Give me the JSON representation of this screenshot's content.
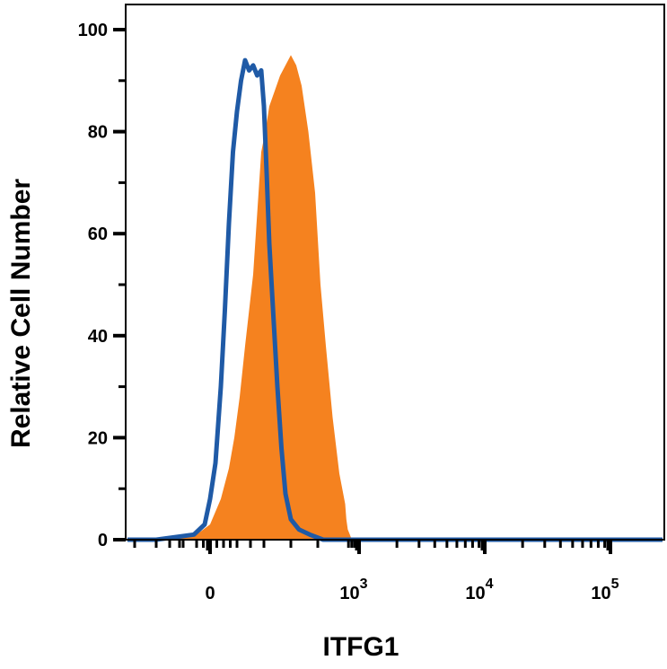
{
  "chart_data": {
    "type": "area",
    "xlabel": "ITFG1",
    "ylabel": "Relative Cell Number",
    "ylim": [
      0,
      100
    ],
    "y_ticks": [
      {
        "value": 0,
        "label": "0"
      },
      {
        "value": 20,
        "label": "20"
      },
      {
        "value": 40,
        "label": "40"
      },
      {
        "value": 60,
        "label": "60"
      },
      {
        "value": 80,
        "label": "80"
      },
      {
        "value": 100,
        "label": "100"
      }
    ],
    "x_scale": "biexponential",
    "x_ticks": [
      {
        "value": 0,
        "base": "0",
        "exp": ""
      },
      {
        "value": 1000,
        "base": "10",
        "exp": "3"
      },
      {
        "value": 10000,
        "base": "10",
        "exp": "4"
      },
      {
        "value": 100000,
        "base": "10",
        "exp": "5"
      }
    ],
    "grid": false,
    "legend": "none",
    "series": [
      {
        "style": "filled",
        "color": "#F5821F",
        "points": [
          [
            -150,
            0
          ],
          [
            -50,
            1
          ],
          [
            0,
            3
          ],
          [
            40,
            8
          ],
          [
            70,
            14
          ],
          [
            90,
            20
          ],
          [
            110,
            28
          ],
          [
            130,
            38
          ],
          [
            145,
            45
          ],
          [
            160,
            52
          ],
          [
            175,
            64
          ],
          [
            190,
            76
          ],
          [
            205,
            80
          ],
          [
            220,
            85
          ],
          [
            240,
            88
          ],
          [
            260,
            91
          ],
          [
            280,
            93
          ],
          [
            300,
            95
          ],
          [
            320,
            93
          ],
          [
            340,
            89
          ],
          [
            365,
            80
          ],
          [
            390,
            68
          ],
          [
            410,
            50
          ],
          [
            430,
            38
          ],
          [
            455,
            24
          ],
          [
            480,
            13
          ],
          [
            510,
            7
          ],
          [
            540,
            4
          ],
          [
            580,
            2
          ],
          [
            640,
            1
          ],
          [
            700,
            0
          ],
          [
            800,
            0
          ]
        ]
      },
      {
        "style": "line",
        "color": "#1F5AA6",
        "points": [
          [
            -200,
            0
          ],
          [
            -60,
            1
          ],
          [
            -20,
            3
          ],
          [
            0,
            8
          ],
          [
            20,
            15
          ],
          [
            40,
            30
          ],
          [
            55,
            45
          ],
          [
            70,
            62
          ],
          [
            85,
            76
          ],
          [
            100,
            84
          ],
          [
            115,
            90
          ],
          [
            130,
            94
          ],
          [
            145,
            92
          ],
          [
            160,
            93
          ],
          [
            175,
            91
          ],
          [
            190,
            92
          ],
          [
            200,
            85
          ],
          [
            210,
            72
          ],
          [
            220,
            58
          ],
          [
            235,
            44
          ],
          [
            250,
            30
          ],
          [
            265,
            18
          ],
          [
            280,
            9
          ],
          [
            300,
            4
          ],
          [
            330,
            2
          ],
          [
            370,
            1
          ],
          [
            420,
            0
          ],
          [
            600,
            0
          ]
        ]
      }
    ]
  }
}
